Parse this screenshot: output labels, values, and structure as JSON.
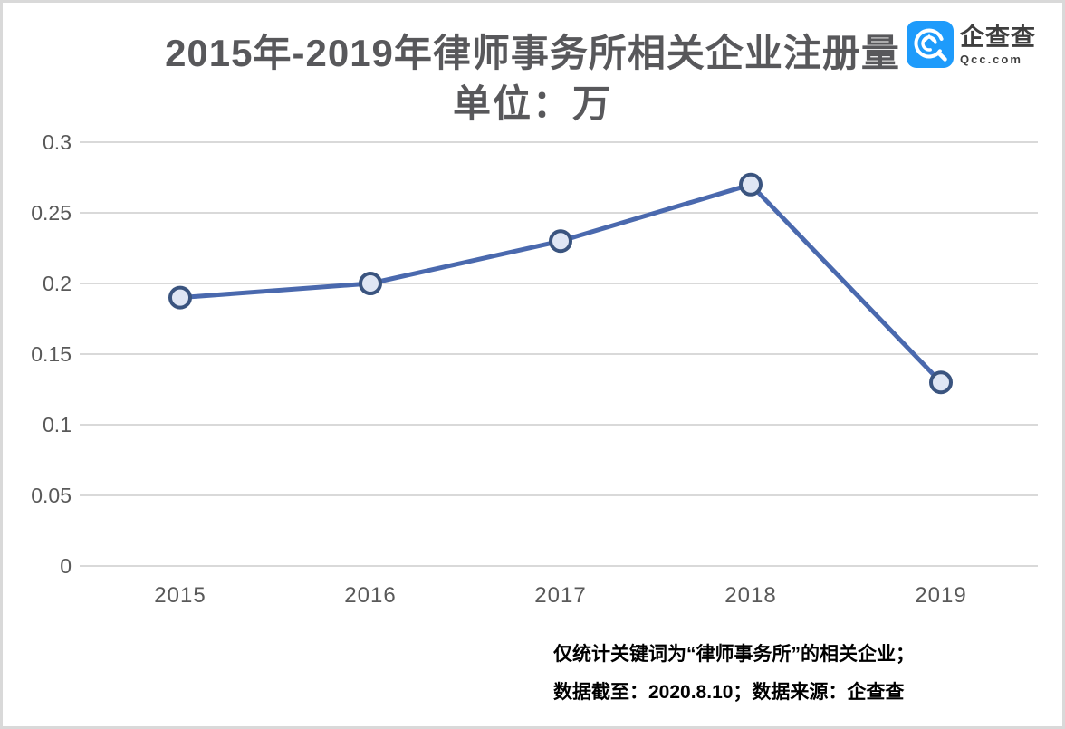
{
  "header": {
    "title_line1": "2015年-2019年律师事务所相关企业注册量",
    "title_line2": "单位：万",
    "logo": {
      "name": "企查查",
      "domain": "Qcc.com",
      "brand_color": "#1e9bfb"
    }
  },
  "chart_data": {
    "type": "line",
    "title": "2015年-2019年律师事务所相关企业注册量",
    "subtitle": "单位：万",
    "categories": [
      "2015",
      "2016",
      "2017",
      "2018",
      "2019"
    ],
    "values": [
      0.19,
      0.2,
      0.23,
      0.27,
      0.13
    ],
    "xlabel": "",
    "ylabel": "",
    "ylim": [
      0,
      0.3
    ],
    "yticks": [
      0,
      0.05,
      0.1,
      0.15,
      0.2,
      0.25,
      0.3
    ],
    "grid": true,
    "legend": "none",
    "colors": {
      "line": "#4a69ae",
      "marker_fill": "#dfe6f4",
      "marker_stroke": "#3a547f",
      "gridline": "#d9d9d9",
      "tick_label": "#595959"
    }
  },
  "footnote": {
    "line1": "仅统计关键词为“律师事务所”的相关企业；",
    "line2": "数据截至：2020.8.10；数据来源：企查查"
  }
}
